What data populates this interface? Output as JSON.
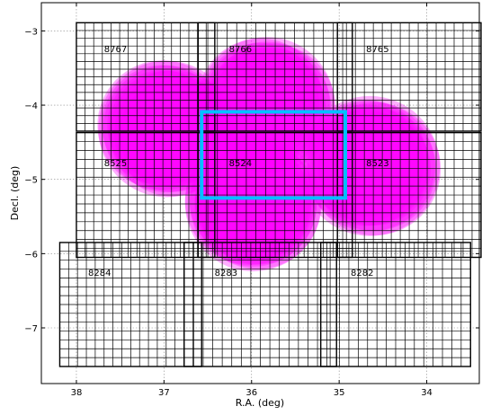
{
  "chart_data": {
    "type": "scatter",
    "title": "",
    "xlabel": "R.A. (deg)",
    "ylabel": "Decl. (deg)",
    "xlim": [
      38.4,
      33.4
    ],
    "ylim": [
      -7.75,
      -2.62
    ],
    "x_inverted": true,
    "grid": true,
    "x_ticks": [
      38,
      37,
      36,
      35,
      34
    ],
    "y_ticks": [
      -3,
      -4,
      -5,
      -6,
      -7
    ],
    "colors": {
      "pointing": "#ff00ff",
      "highlight_box": "#00bfff",
      "grid": "#000000"
    },
    "tiles": [
      {
        "label": "8767",
        "ra_min": 36.42,
        "ra_max": 38.0,
        "dec_min": -4.35,
        "dec_max": -2.89,
        "nx": 16,
        "ny": 14
      },
      {
        "label": "8766",
        "ra_min": 34.85,
        "ra_max": 36.61,
        "dec_min": -4.35,
        "dec_max": -2.89,
        "nx": 16,
        "ny": 14
      },
      {
        "label": "8765",
        "ra_min": 33.38,
        "ra_max": 35.02,
        "dec_min": -4.35,
        "dec_max": -2.89,
        "nx": 16,
        "ny": 14
      },
      {
        "label": "8525",
        "ra_min": 36.42,
        "ra_max": 38.0,
        "dec_min": -6.05,
        "dec_max": -4.37,
        "nx": 16,
        "ny": 14
      },
      {
        "label": "8524",
        "ra_min": 34.85,
        "ra_max": 36.61,
        "dec_min": -6.05,
        "dec_max": -4.37,
        "nx": 16,
        "ny": 14
      },
      {
        "label": "8523",
        "ra_min": 33.38,
        "ra_max": 35.02,
        "dec_min": -6.05,
        "dec_max": -4.37,
        "nx": 16,
        "ny": 14
      },
      {
        "label": "8284",
        "ra_min": 36.57,
        "ra_max": 38.19,
        "dec_min": -7.52,
        "dec_max": -5.85,
        "nx": 16,
        "ny": 14
      },
      {
        "label": "8283",
        "ra_min": 35.03,
        "ra_max": 36.77,
        "dec_min": -7.52,
        "dec_max": -5.85,
        "nx": 16,
        "ny": 14
      },
      {
        "label": "8282",
        "ra_min": 33.5,
        "ra_max": 35.21,
        "dec_min": -7.52,
        "dec_max": -5.85,
        "nx": 16,
        "ny": 14
      }
    ],
    "pointings": [
      {
        "ra": 36.97,
        "dec": -4.32,
        "r": 0.78
      },
      {
        "ra": 37.02,
        "dec": -4.27,
        "r": 0.74
      },
      {
        "ra": 36.9,
        "dec": -4.38,
        "r": 0.72
      },
      {
        "ra": 35.83,
        "dec": -4.0,
        "r": 0.78
      },
      {
        "ra": 35.78,
        "dec": -4.04,
        "r": 0.74
      },
      {
        "ra": 35.9,
        "dec": -3.95,
        "r": 0.72
      },
      {
        "ra": 35.98,
        "dec": -5.32,
        "r": 0.78
      },
      {
        "ra": 36.02,
        "dec": -5.28,
        "r": 0.74
      },
      {
        "ra": 35.93,
        "dec": -5.36,
        "r": 0.72
      },
      {
        "ra": 34.65,
        "dec": -4.82,
        "r": 0.8
      },
      {
        "ra": 34.6,
        "dec": -4.86,
        "r": 0.76
      },
      {
        "ra": 34.7,
        "dec": -4.78,
        "r": 0.72
      }
    ],
    "highlight_box": {
      "ra_min": 34.93,
      "ra_max": 36.57,
      "dec_min": -5.25,
      "dec_max": -4.09
    }
  }
}
